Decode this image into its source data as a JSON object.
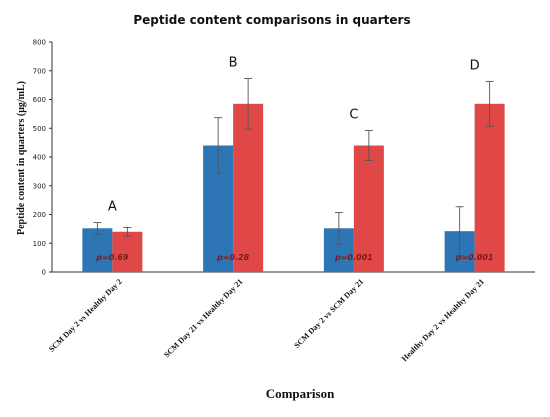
{
  "chart_data": {
    "type": "bar",
    "title": "Peptide content comparisons in quarters",
    "xlabel": "Comparison",
    "ylabel": "Peptide content in quarters (μg/mL)",
    "ylim": [
      0,
      800
    ],
    "yticks": [
      0,
      100,
      200,
      300,
      400,
      500,
      600,
      700,
      800
    ],
    "grid": false,
    "categories": [
      "SCM Day 2 vs Healthy Day 2",
      "SCM Day 21 vs Healthy Day 21",
      "SCM Day 2 vs SCM Day 21",
      "Healthy Day 2 vs Healthy Day 21"
    ],
    "series": [
      {
        "color": "#2e75b6",
        "values": [
          152,
          440,
          152,
          142
        ],
        "errors": [
          20,
          97,
          55,
          85
        ]
      },
      {
        "color": "#e04848",
        "values": [
          140,
          585,
          440,
          585
        ],
        "errors": [
          15,
          88,
          52,
          78
        ]
      }
    ],
    "group_letters": [
      "A",
      "B",
      "C",
      "D"
    ],
    "p_values": [
      "p=0.69",
      "p=0.28",
      "p=0.001",
      "p=0.001"
    ]
  }
}
